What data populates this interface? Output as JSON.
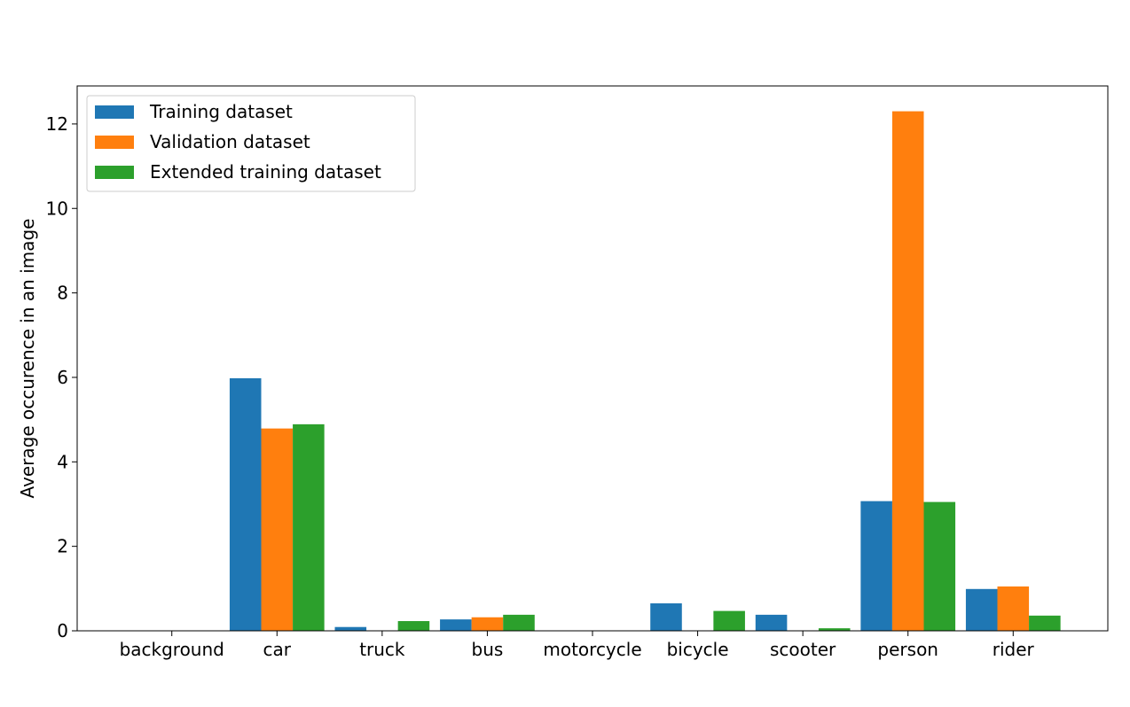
{
  "chart_data": {
    "type": "bar",
    "categories": [
      "background",
      "car",
      "truck",
      "bus",
      "motorcycle",
      "bicycle",
      "scooter",
      "person",
      "rider"
    ],
    "series": [
      {
        "name": "Training dataset",
        "color": "#1f77b4",
        "values": [
          0,
          5.98,
          0.09,
          0.27,
          0,
          0.65,
          0.38,
          3.07,
          0.99
        ]
      },
      {
        "name": "Validation dataset",
        "color": "#ff7f0e",
        "values": [
          0,
          4.79,
          0,
          0.32,
          0,
          0,
          0,
          12.3,
          1.05
        ]
      },
      {
        "name": "Extended training dataset",
        "color": "#2ca02c",
        "values": [
          0,
          4.89,
          0.23,
          0.38,
          0,
          0.47,
          0.06,
          3.05,
          0.36
        ]
      }
    ],
    "ylabel": "Average occurence in an image",
    "xlabel": "",
    "ylim": [
      0,
      12.9
    ],
    "yticks": [
      0,
      2,
      4,
      6,
      8,
      10,
      12
    ],
    "grid": false,
    "legend": "top-left"
  }
}
